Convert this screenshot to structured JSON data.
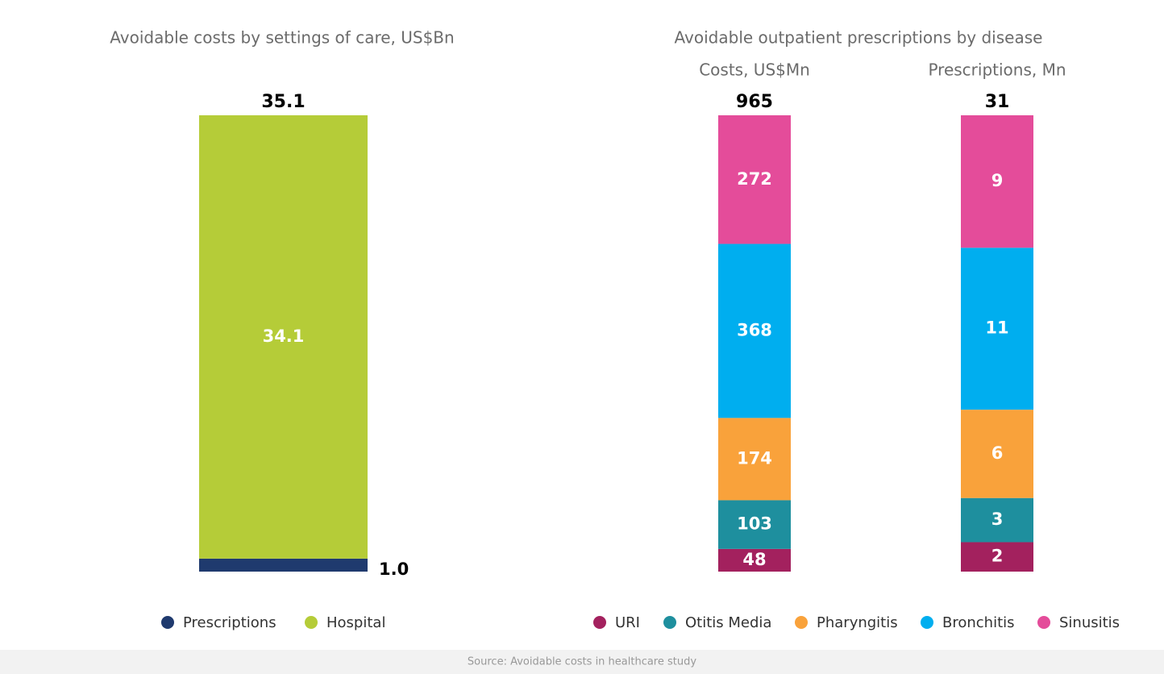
{
  "chart_data": [
    {
      "type": "stacked_bar",
      "title": "Avoidable costs by settings of care, US$Bn",
      "totals": [
        35.1
      ],
      "series": [
        {
          "name": "Prescriptions",
          "color": "#1f3a6e",
          "values": [
            1.0
          ],
          "value_labels": [
            "1.0"
          ]
        },
        {
          "name": "Hospital",
          "color": "#b5cc38",
          "values": [
            34.1
          ]
        }
      ]
    },
    {
      "type": "stacked_bar",
      "title": "Avoidable outpatient prescriptions by disease",
      "categories": [
        "Costs, US$Mn",
        "Prescriptions, Mn"
      ],
      "totals": [
        965,
        31
      ],
      "series": [
        {
          "name": "URI",
          "color": "#a3215e",
          "values": [
            48,
            2
          ]
        },
        {
          "name": "Otitis Media",
          "color": "#1e8f9e",
          "values": [
            103,
            3
          ]
        },
        {
          "name": "Pharyngitis",
          "color": "#f9a23b",
          "values": [
            174,
            6
          ]
        },
        {
          "name": "Bronchitis",
          "color": "#00aeef",
          "values": [
            368,
            11
          ]
        },
        {
          "name": "Sinusitis",
          "color": "#e44c9a",
          "values": [
            272,
            9
          ]
        }
      ]
    }
  ],
  "source": "Source: Avoidable costs in healthcare study"
}
